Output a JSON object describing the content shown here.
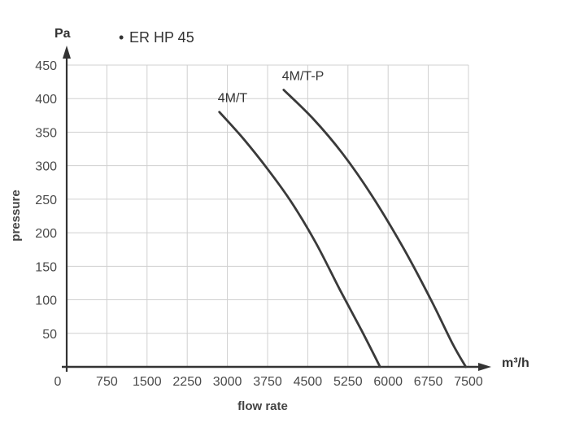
{
  "chart_data": {
    "type": "line",
    "title": "ER HP 45",
    "title_bullet": "•",
    "xlabel": "flow rate",
    "ylabel": "pressure",
    "x_unit": "m³/h",
    "y_unit": "Pa",
    "xlim": [
      0,
      7500
    ],
    "ylim": [
      0,
      450
    ],
    "x_ticks": [
      0,
      750,
      1500,
      2250,
      3000,
      3750,
      4500,
      5250,
      6000,
      6750,
      7500
    ],
    "y_ticks": [
      50,
      100,
      150,
      200,
      250,
      300,
      350,
      400,
      450
    ],
    "origin_label": "0",
    "grid": true,
    "colors": {
      "curve": "#3a3a3a",
      "grid": "#d0d0d0",
      "axis": "#333333"
    },
    "series": [
      {
        "name": "4M/T",
        "points": [
          [
            2850,
            380
          ],
          [
            3300,
            340
          ],
          [
            3750,
            295
          ],
          [
            4200,
            245
          ],
          [
            4650,
            185
          ],
          [
            5100,
            115
          ],
          [
            5500,
            55
          ],
          [
            5850,
            0
          ]
        ]
      },
      {
        "name": "4M/T-P",
        "points": [
          [
            4050,
            413
          ],
          [
            4600,
            370
          ],
          [
            5150,
            318
          ],
          [
            5700,
            255
          ],
          [
            6300,
            175
          ],
          [
            6800,
            100
          ],
          [
            7200,
            35
          ],
          [
            7450,
            0
          ]
        ]
      }
    ]
  }
}
